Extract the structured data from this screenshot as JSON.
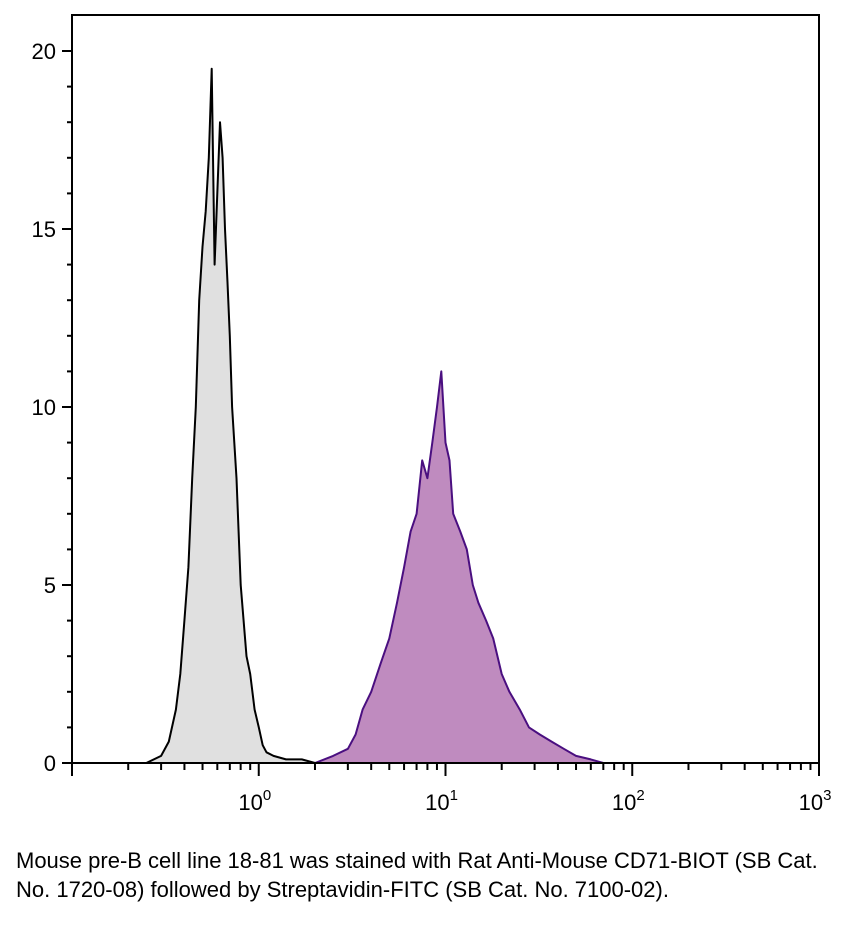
{
  "chart_data": {
    "type": "area",
    "title": "",
    "xlabel": "",
    "ylabel": "",
    "x_scale": "log",
    "xlim": [
      0.1,
      1000
    ],
    "ylim": [
      0,
      21
    ],
    "x_ticks": [
      {
        "base": "10",
        "exp": "0"
      },
      {
        "base": "10",
        "exp": "1"
      },
      {
        "base": "10",
        "exp": "2"
      },
      {
        "base": "10",
        "exp": "3"
      }
    ],
    "y_ticks": [
      "0",
      "5",
      "10",
      "15",
      "20"
    ],
    "grid": false,
    "legend": "none",
    "series": [
      {
        "fill": "#e0e0e0",
        "stroke": "#000000",
        "x": [
          0.25,
          0.3,
          0.33,
          0.36,
          0.38,
          0.4,
          0.42,
          0.44,
          0.46,
          0.48,
          0.5,
          0.52,
          0.54,
          0.56,
          0.58,
          0.6,
          0.62,
          0.64,
          0.66,
          0.68,
          0.7,
          0.72,
          0.74,
          0.76,
          0.78,
          0.8,
          0.83,
          0.86,
          0.9,
          0.95,
          1.0,
          1.05,
          1.1,
          1.2,
          1.4,
          1.7,
          2.0
        ],
        "y": [
          0,
          0.2,
          0.6,
          1.5,
          2.5,
          4,
          5.5,
          8,
          10,
          13,
          14.5,
          15.5,
          17,
          19.5,
          14,
          16,
          18,
          17,
          15,
          13.5,
          12,
          10,
          9,
          8,
          6.5,
          5,
          4,
          3,
          2.5,
          1.5,
          1,
          0.5,
          0.3,
          0.2,
          0.1,
          0.1,
          0
        ]
      },
      {
        "fill": "#bf8bbf",
        "stroke": "#4a0f80",
        "x": [
          2.0,
          2.5,
          3.0,
          3.3,
          3.6,
          4.0,
          4.5,
          5.0,
          5.5,
          6.0,
          6.5,
          7.0,
          7.5,
          8.0,
          8.5,
          9.0,
          9.5,
          10.0,
          10.5,
          11.0,
          12.0,
          13.0,
          14.0,
          15.0,
          16.5,
          18.0,
          20.0,
          22.0,
          25.0,
          28.0,
          32.0,
          37.0,
          43.0,
          50.0,
          60.0,
          70.0
        ],
        "y": [
          0,
          0.2,
          0.4,
          0.8,
          1.5,
          2,
          2.8,
          3.5,
          4.5,
          5.5,
          6.5,
          7,
          8.5,
          8,
          9,
          10,
          11,
          9,
          8.5,
          7,
          6.5,
          6,
          5,
          4.5,
          4,
          3.5,
          2.5,
          2,
          1.5,
          1,
          0.8,
          0.6,
          0.4,
          0.2,
          0.1,
          0
        ]
      }
    ]
  },
  "caption": "Mouse pre-B cell line 18-81 was stained with Rat Anti-Mouse CD71-BIOT (SB Cat. No. 1720-08) followed by Streptavidin-FITC (SB Cat. No. 7100-02)."
}
